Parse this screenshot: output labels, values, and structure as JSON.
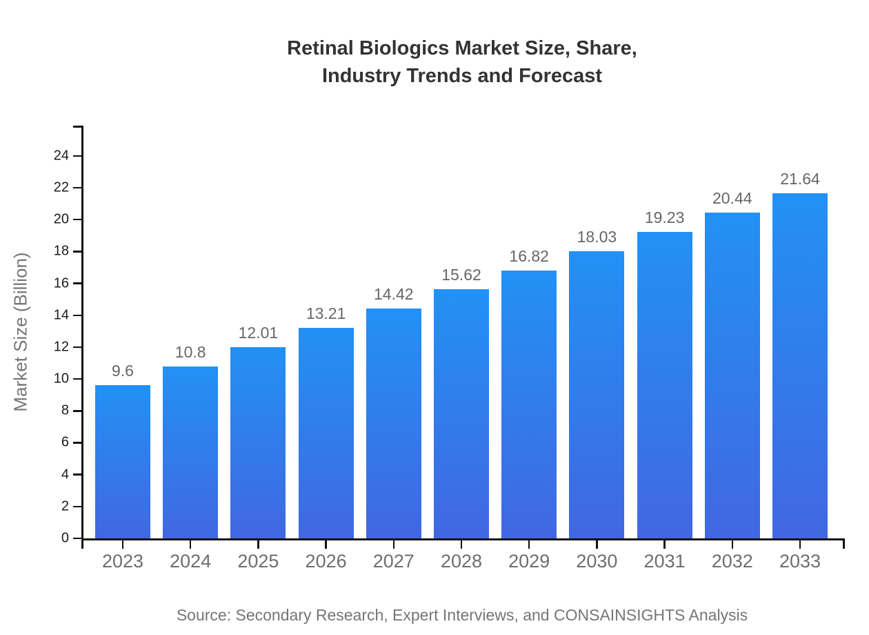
{
  "title": {
    "line1": "Retinal Biologics Market Size, Share,",
    "line2": "Industry Trends and Forecast"
  },
  "chart_data": {
    "type": "bar",
    "title": "Retinal Biologics Market Size, Share, Industry Trends and Forecast",
    "categories": [
      "2023",
      "2024",
      "2025",
      "2026",
      "2027",
      "2028",
      "2029",
      "2030",
      "2031",
      "2032",
      "2033"
    ],
    "values": [
      9.6,
      10.8,
      12.01,
      13.21,
      14.42,
      15.62,
      16.82,
      18.03,
      19.23,
      20.44,
      21.64
    ],
    "xlabel": "",
    "ylabel": "Market Size (Billion)",
    "ylim": [
      0,
      25.9
    ],
    "yticks": [
      0,
      2,
      4,
      6,
      8,
      10,
      12,
      14,
      16,
      18,
      20,
      22,
      24
    ],
    "grid": false,
    "legend": false,
    "data_labels": true,
    "colors": {
      "bar_gradient_top": "#2291f6",
      "bar_gradient_bottom": "#4167e2",
      "axis": "#111111",
      "x_tick_label": "#6e6e6e",
      "y_tick_label": "#1a1a1a",
      "value_label": "#666666",
      "title": "#333333",
      "muted_text": "#757575"
    }
  },
  "source": "Source: Secondary Research, Expert Interviews, and CONSAINSIGHTS Analysis"
}
